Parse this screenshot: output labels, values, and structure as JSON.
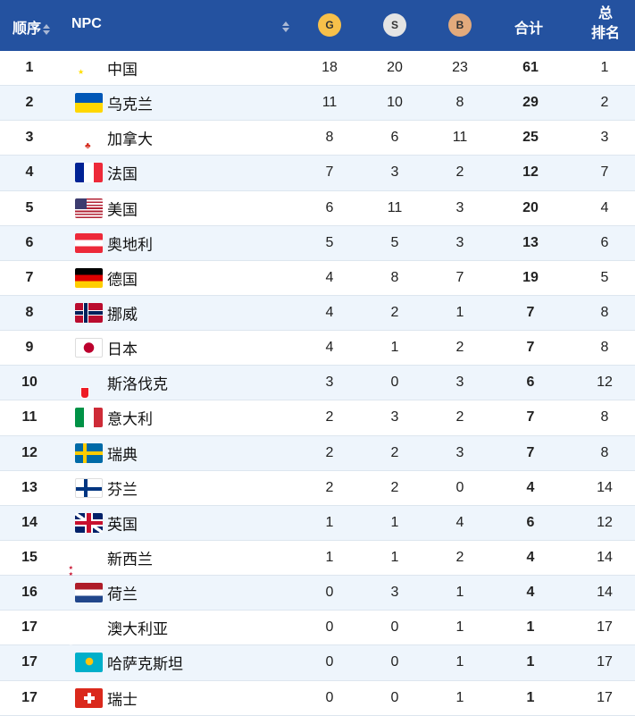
{
  "header": {
    "order": "顺序",
    "npc": "NPC",
    "gold": "G",
    "silver": "S",
    "bronze": "B",
    "total": "合计",
    "overall_line1": "总",
    "overall_line2": "排名"
  },
  "colors": {
    "header_bg": "#2452a0",
    "gold": "#f7c04a",
    "silver": "#e4e4e4",
    "bronze": "#e2aa7c",
    "alt_row": "#eef5fc"
  },
  "rows": [
    {
      "order": "1",
      "flag": "cn",
      "name": "中国",
      "g": "18",
      "s": "20",
      "b": "23",
      "total": "61",
      "rank": "1"
    },
    {
      "order": "2",
      "flag": "ua",
      "name": "乌克兰",
      "g": "11",
      "s": "10",
      "b": "8",
      "total": "29",
      "rank": "2"
    },
    {
      "order": "3",
      "flag": "ca",
      "name": "加拿大",
      "g": "8",
      "s": "6",
      "b": "11",
      "total": "25",
      "rank": "3"
    },
    {
      "order": "4",
      "flag": "fr",
      "name": "法国",
      "g": "7",
      "s": "3",
      "b": "2",
      "total": "12",
      "rank": "7"
    },
    {
      "order": "5",
      "flag": "us",
      "name": "美国",
      "g": "6",
      "s": "11",
      "b": "3",
      "total": "20",
      "rank": "4"
    },
    {
      "order": "6",
      "flag": "at",
      "name": "奥地利",
      "g": "5",
      "s": "5",
      "b": "3",
      "total": "13",
      "rank": "6"
    },
    {
      "order": "7",
      "flag": "de",
      "name": "德国",
      "g": "4",
      "s": "8",
      "b": "7",
      "total": "19",
      "rank": "5"
    },
    {
      "order": "8",
      "flag": "no",
      "name": "挪威",
      "g": "4",
      "s": "2",
      "b": "1",
      "total": "7",
      "rank": "8"
    },
    {
      "order": "9",
      "flag": "jp",
      "name": "日本",
      "g": "4",
      "s": "1",
      "b": "2",
      "total": "7",
      "rank": "8"
    },
    {
      "order": "10",
      "flag": "sk",
      "name": "斯洛伐克",
      "g": "3",
      "s": "0",
      "b": "3",
      "total": "6",
      "rank": "12"
    },
    {
      "order": "11",
      "flag": "it",
      "name": "意大利",
      "g": "2",
      "s": "3",
      "b": "2",
      "total": "7",
      "rank": "8"
    },
    {
      "order": "12",
      "flag": "se",
      "name": "瑞典",
      "g": "2",
      "s": "2",
      "b": "3",
      "total": "7",
      "rank": "8"
    },
    {
      "order": "13",
      "flag": "fi",
      "name": "芬兰",
      "g": "2",
      "s": "2",
      "b": "0",
      "total": "4",
      "rank": "14"
    },
    {
      "order": "14",
      "flag": "gb",
      "name": "英国",
      "g": "1",
      "s": "1",
      "b": "4",
      "total": "6",
      "rank": "12"
    },
    {
      "order": "15",
      "flag": "nz",
      "name": "新西兰",
      "g": "1",
      "s": "1",
      "b": "2",
      "total": "4",
      "rank": "14"
    },
    {
      "order": "16",
      "flag": "nl",
      "name": "荷兰",
      "g": "0",
      "s": "3",
      "b": "1",
      "total": "4",
      "rank": "14"
    },
    {
      "order": "17",
      "flag": "au",
      "name": "澳大利亚",
      "g": "0",
      "s": "0",
      "b": "1",
      "total": "1",
      "rank": "17"
    },
    {
      "order": "17",
      "flag": "kz",
      "name": "哈萨克斯坦",
      "g": "0",
      "s": "0",
      "b": "1",
      "total": "1",
      "rank": "17"
    },
    {
      "order": "17",
      "flag": "ch",
      "name": "瑞士",
      "g": "0",
      "s": "0",
      "b": "1",
      "total": "1",
      "rank": "17"
    }
  ]
}
